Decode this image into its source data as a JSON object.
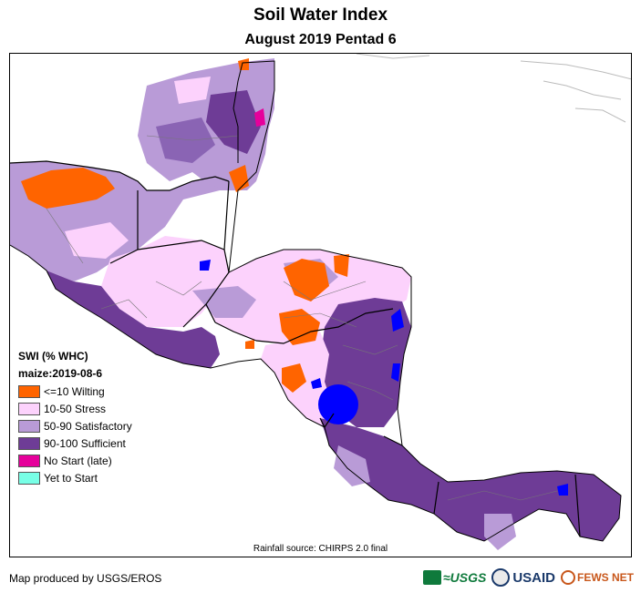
{
  "header": {
    "title": "Soil Water Index",
    "subtitle": "August 2019 Pentad 6"
  },
  "legend": {
    "title": "SWI (% WHC)",
    "crop": "maize:2019-08-6",
    "items": [
      {
        "label": "<=10 Wilting",
        "color": "#ff6400"
      },
      {
        "label": "10-50 Stress",
        "color": "#fcd2fc"
      },
      {
        "label": "50-90 Satisfactory",
        "color": "#b99bd7"
      },
      {
        "label": "90-100 Sufficient",
        "color": "#6e3c96"
      },
      {
        "label": "No Start (late)",
        "color": "#e6009b"
      },
      {
        "label": "Yet to Start",
        "color": "#78ffe6"
      }
    ]
  },
  "map": {
    "water_color": "#0000ff"
  },
  "footer": {
    "source": "Rainfall source: CHIRPS 2.0 final",
    "credit": "Map produced by USGS/EROS",
    "logos": {
      "usgs": "≈USGS",
      "usaid": "USAID",
      "fews": "FEWS NET"
    }
  }
}
